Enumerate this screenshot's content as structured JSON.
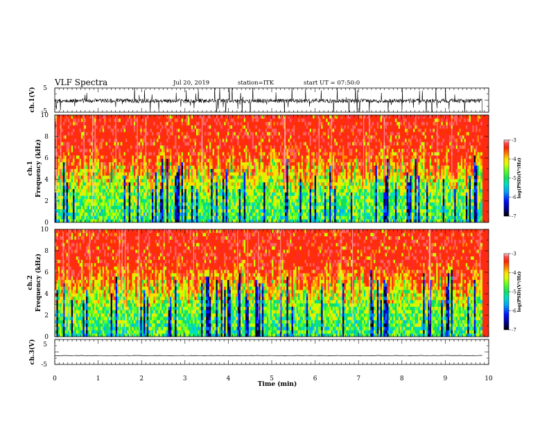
{
  "header": {
    "title": "VLF Spectra",
    "date": "Jul 20, 2019",
    "station": "station=ITK",
    "start": "start UT = 07:50:0"
  },
  "colors": {
    "waveform": "#000000",
    "background": "#ffffff",
    "colormap": [
      "#000000",
      "#00007a",
      "#0010ff",
      "#00a0ff",
      "#00e0c0",
      "#10e060",
      "#60ff20",
      "#d8ff00",
      "#ffe000",
      "#ff8000",
      "#ff2000",
      "#ff3030",
      "#ffd8d8"
    ]
  },
  "chart_data": [
    {
      "type": "line",
      "name": "ch1-waveform",
      "ylabel": "ch.1(V)",
      "ylim": [
        -5,
        5
      ],
      "yticks": [
        "5",
        "-5"
      ],
      "x_range_min": [
        0,
        10
      ],
      "description_level": "noisy impulsive signal centered near 0 V with many spikes beyond ±5 V"
    },
    {
      "type": "heatmap",
      "name": "ch1-spectrogram",
      "ylabel": "ch.1\nFrequency (kHz)",
      "ylabel_lines": [
        "ch.1",
        "Frequency (kHz)"
      ],
      "ylim": [
        0,
        10
      ],
      "yticks": [
        "0",
        "2",
        "4",
        "6",
        "8",
        "10"
      ],
      "colorbar": {
        "label": "log(PSD)(V²/Hz)",
        "range": [
          -7,
          -3
        ],
        "ticks": [
          "-3",
          "-4",
          "-5",
          "-6",
          "-7"
        ]
      }
    },
    {
      "type": "heatmap",
      "name": "ch2-spectrogram",
      "ylabel_lines": [
        "ch.2",
        "Frequency (kHz)"
      ],
      "ylim": [
        0,
        10
      ],
      "yticks": [
        "0",
        "2",
        "4",
        "6",
        "8",
        "10"
      ],
      "colorbar": {
        "label": "log(PSD)(V²/Hz)",
        "range": [
          -7,
          -3
        ],
        "ticks": [
          "-3",
          "-4",
          "-5",
          "-6",
          "-7"
        ]
      }
    },
    {
      "type": "line",
      "name": "ch3-waveform",
      "ylabel": "ch.3(V)",
      "ylim": [
        -5,
        5
      ],
      "yticks": [
        "5",
        "-5"
      ],
      "level": -1.5
    }
  ],
  "xaxis": {
    "label": "Time (min)",
    "range": [
      0,
      10
    ],
    "ticks": [
      "0",
      "1",
      "2",
      "3",
      "4",
      "5",
      "6",
      "7",
      "8",
      "9",
      "10"
    ]
  }
}
